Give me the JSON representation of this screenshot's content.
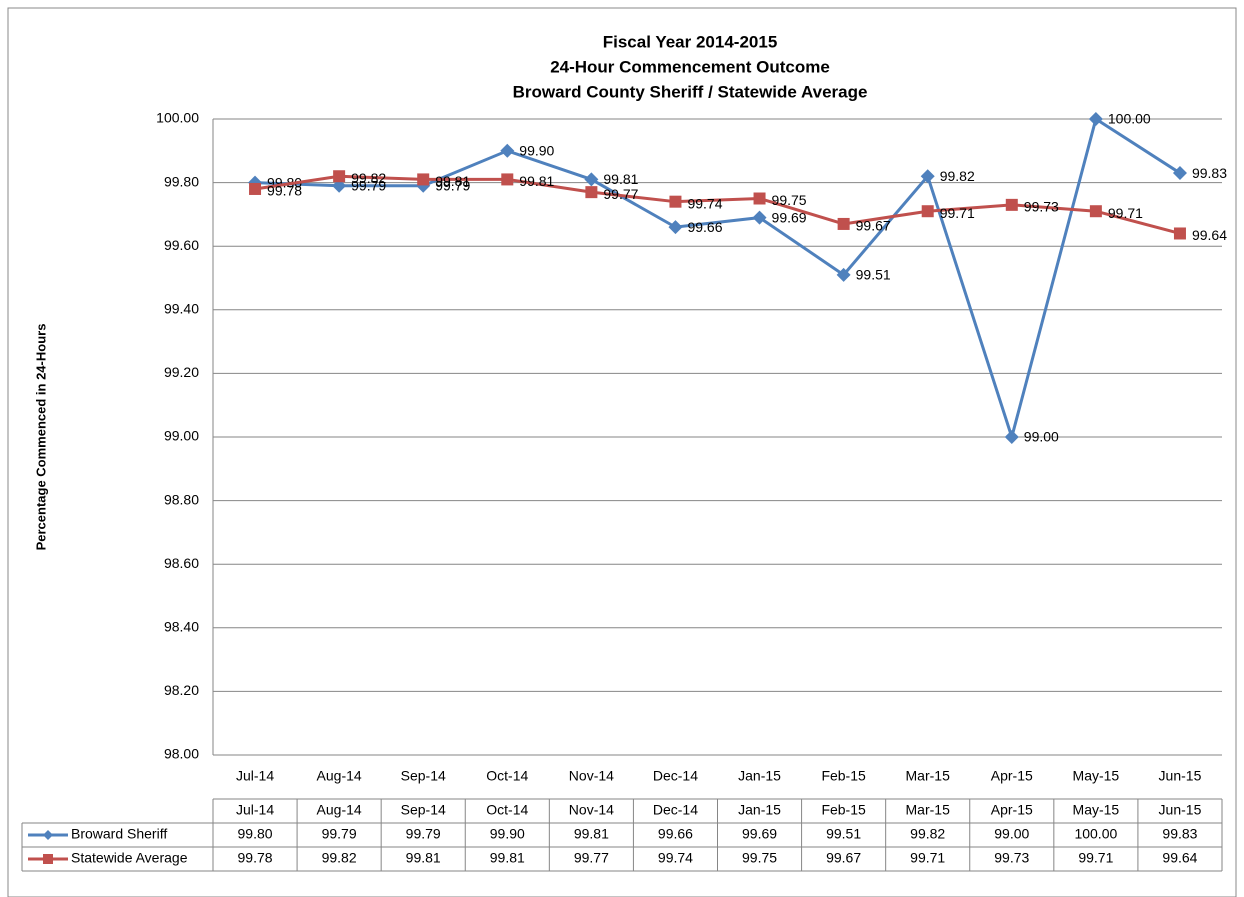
{
  "chart_data": {
    "type": "line",
    "title": [
      "Fiscal Year 2014-2015",
      "24-Hour Commencement Outcome",
      "Broward County Sheriff / Statewide Average"
    ],
    "y_label": "Percentage Commenced in 24-Hours",
    "categories": [
      "Jul-14",
      "Aug-14",
      "Sep-14",
      "Oct-14",
      "Nov-14",
      "Dec-14",
      "Jan-15",
      "Feb-15",
      "Mar-15",
      "Apr-15",
      "May-15",
      "Jun-15"
    ],
    "series": [
      {
        "name": "Broward Sheriff",
        "color": "#4f81bd",
        "marker": "diamond",
        "values": [
          99.8,
          99.79,
          99.79,
          99.9,
          99.81,
          99.66,
          99.69,
          99.51,
          99.82,
          99.0,
          100.0,
          99.83
        ],
        "value_labels": [
          "99.80",
          "99.79",
          "99.79",
          "99.90",
          "99.81",
          "99.66",
          "99.69",
          "99.51",
          "99.82",
          "99.00",
          "100.00",
          "99.83"
        ]
      },
      {
        "name": "Statewide Average",
        "color": "#c0504d",
        "marker": "square",
        "values": [
          99.78,
          99.82,
          99.81,
          99.81,
          99.77,
          99.74,
          99.75,
          99.67,
          99.71,
          99.73,
          99.71,
          99.64
        ],
        "value_labels": [
          "99.78",
          "99.82",
          "99.81",
          "99.81",
          "99.77",
          "99.74",
          "99.75",
          "99.67",
          "99.71",
          "99.73",
          "99.71",
          "99.64"
        ]
      }
    ],
    "ylim": [
      98,
      100
    ],
    "yticks": [
      {
        "value": 98,
        "label": "98.00"
      },
      {
        "value": 98.2,
        "label": "98.20"
      },
      {
        "value": 98.4,
        "label": "98.40"
      },
      {
        "value": 98.6,
        "label": "98.60"
      },
      {
        "value": 98.8,
        "label": "98.80"
      },
      {
        "value": 99,
        "label": "99.00"
      },
      {
        "value": 99.2,
        "label": "99.20"
      },
      {
        "value": 99.4,
        "label": "99.40"
      },
      {
        "value": 99.6,
        "label": "99.60"
      },
      {
        "value": 99.8,
        "label": "99.80"
      },
      {
        "value": 100,
        "label": "100.00"
      }
    ],
    "grid": true,
    "data_table": true
  }
}
